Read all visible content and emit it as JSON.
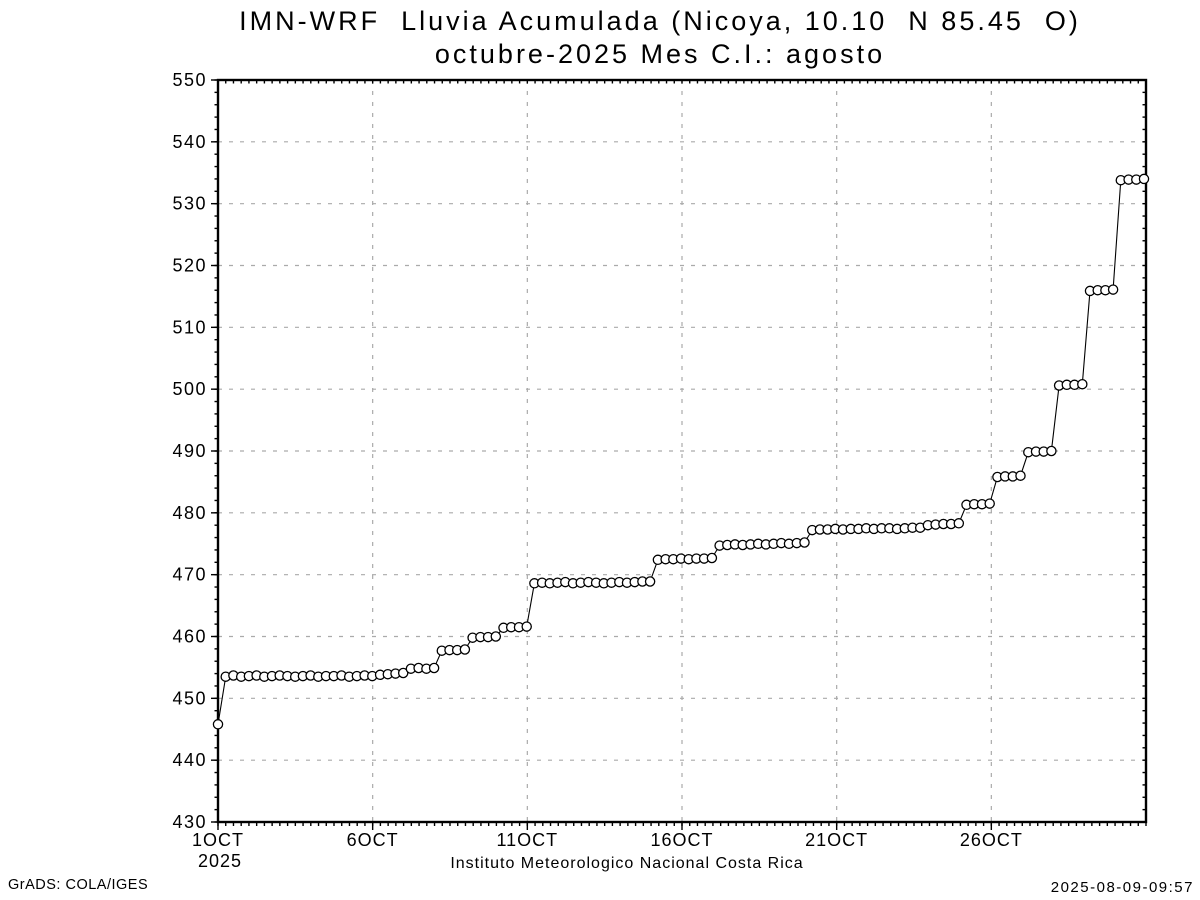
{
  "chart_data": {
    "type": "line",
    "title": "IMN-WRF  Lluvia Acumulada (Nicoya, 10.10  N 85.45  O)",
    "subtitle": "octubre-2025 Mes C.I.: agosto",
    "footer": "Instituto Meteorologico Nacional Costa Rica",
    "ylabel": "",
    "xlabel": "",
    "ylim": [
      430,
      550
    ],
    "y_tick_step": 10,
    "y_minor_step": 2,
    "x_range_days": [
      1,
      31
    ],
    "x_ticks": [
      {
        "day": 1,
        "label": "1OCT",
        "sub": "2025"
      },
      {
        "day": 6,
        "label": "6OCT"
      },
      {
        "day": 11,
        "label": "11OCT"
      },
      {
        "day": 16,
        "label": "16OCT"
      },
      {
        "day": 21,
        "label": "21OCT"
      },
      {
        "day": 26,
        "label": "26OCT"
      }
    ],
    "grid": true,
    "legend": "none",
    "marker": "open-circle",
    "line_color": "#000000",
    "grid_color": "#aaaaaa",
    "series": [
      {
        "name": "lluvia-acumulada-mm",
        "start": "1OCT2025 00Z",
        "interval_hours": 6,
        "values": [
          445.8,
          453.5,
          453.7,
          453.5,
          453.6,
          453.7,
          453.5,
          453.6,
          453.7,
          453.6,
          453.5,
          453.6,
          453.7,
          453.5,
          453.6,
          453.6,
          453.7,
          453.5,
          453.6,
          453.7,
          453.6,
          453.8,
          453.9,
          454.0,
          454.1,
          454.8,
          454.9,
          454.8,
          454.9,
          457.7,
          457.8,
          457.8,
          457.9,
          459.8,
          459.9,
          459.9,
          460.0,
          461.4,
          461.5,
          461.5,
          461.6,
          468.6,
          468.7,
          468.6,
          468.7,
          468.8,
          468.6,
          468.7,
          468.8,
          468.7,
          468.6,
          468.7,
          468.8,
          468.7,
          468.8,
          468.9,
          468.9,
          472.4,
          472.5,
          472.5,
          472.6,
          472.5,
          472.6,
          472.6,
          472.7,
          474.7,
          474.8,
          474.9,
          474.8,
          474.9,
          475.0,
          474.9,
          475.0,
          475.1,
          475.0,
          475.1,
          475.2,
          477.2,
          477.3,
          477.3,
          477.4,
          477.3,
          477.4,
          477.4,
          477.5,
          477.4,
          477.5,
          477.5,
          477.4,
          477.5,
          477.6,
          477.6,
          478.0,
          478.1,
          478.2,
          478.2,
          478.3,
          481.3,
          481.4,
          481.4,
          481.5,
          485.8,
          485.9,
          485.9,
          486.0,
          489.8,
          489.9,
          489.9,
          490.0,
          500.6,
          500.7,
          500.7,
          500.8,
          515.9,
          516.0,
          516.0,
          516.1,
          533.8,
          533.9,
          533.9,
          534.0
        ]
      }
    ]
  },
  "footer_left": "GrADS: COLA/IGES",
  "footer_right": "2025-08-09-09:57"
}
